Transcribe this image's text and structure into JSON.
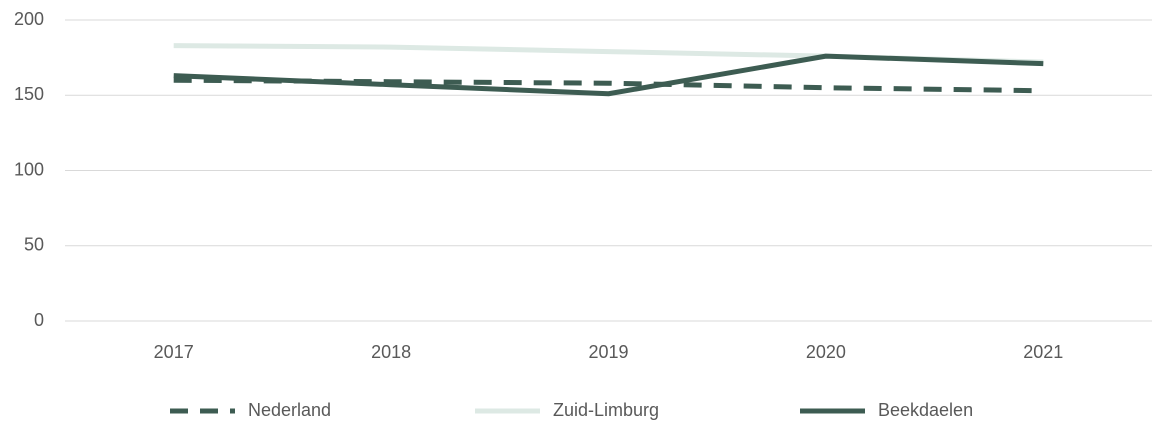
{
  "chart_data": {
    "type": "line",
    "categories": [
      "2017",
      "2018",
      "2019",
      "2020",
      "2021"
    ],
    "series": [
      {
        "name": "Nederland",
        "color": "#3d5c52",
        "dashed": true,
        "values": [
          160,
          159,
          158,
          155,
          153
        ]
      },
      {
        "name": "Zuid-Limburg",
        "color": "#dde9e4",
        "dashed": false,
        "values": [
          183,
          182,
          179,
          176,
          172
        ]
      },
      {
        "name": "Beekdaelen",
        "color": "#3d5c52",
        "dashed": false,
        "values": [
          163,
          157,
          151,
          176,
          171
        ]
      }
    ],
    "ylim": [
      0,
      200
    ],
    "yticks": [
      0,
      50,
      100,
      150,
      200
    ],
    "grid": true,
    "legend": "bottom"
  }
}
